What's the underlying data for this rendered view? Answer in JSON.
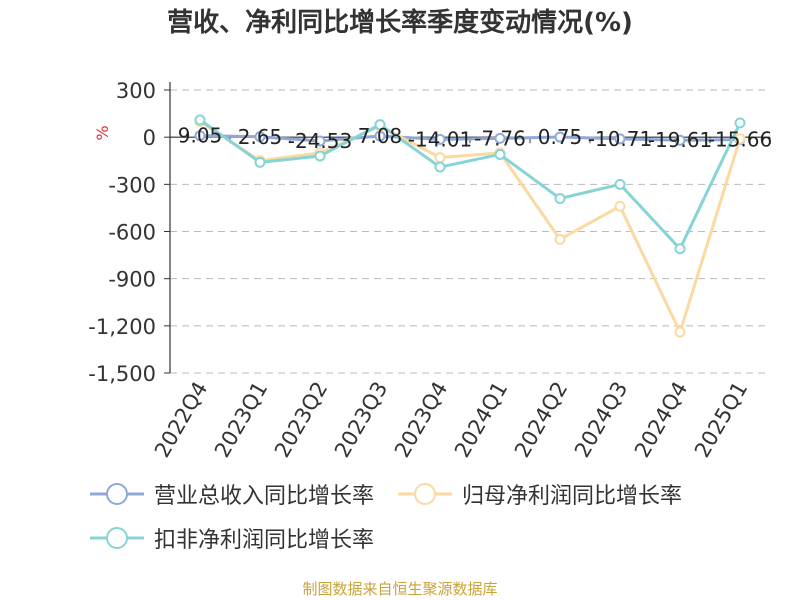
{
  "chart_data": {
    "type": "line",
    "title": "营收、净利同比增长率季度变动情况(%)",
    "ylabel": "%",
    "ylim": [
      -1500,
      300
    ],
    "yticks": [
      300,
      0,
      -300,
      -600,
      -900,
      -1200,
      -1500
    ],
    "ytick_labels": [
      "300",
      "0",
      "-300",
      "-600",
      "-900",
      "-1,200",
      "-1,500"
    ],
    "categories": [
      "2022Q4",
      "2023Q1",
      "2023Q2",
      "2023Q3",
      "2023Q4",
      "2024Q1",
      "2024Q2",
      "2024Q3",
      "2024Q4",
      "2025Q1"
    ],
    "grid": true,
    "legend_position": "bottom",
    "series": [
      {
        "name": "营业总收入同比增长率",
        "color": "#8fa8d8",
        "values": [
          9.05,
          2.65,
          -24.53,
          7.08,
          -14.01,
          -7.76,
          0.75,
          -10.71,
          -19.61,
          -15.66
        ],
        "labels": [
          "9.05",
          "2.65",
          "-24.53",
          "7.08",
          "-14.01",
          "-7.76",
          "0.75",
          "-10.71",
          "-19.61",
          "-15.66"
        ]
      },
      {
        "name": "归母净利润同比增长率",
        "color": "#fbd9a0",
        "values": [
          100,
          -150,
          -100,
          70,
          -130,
          -100,
          -650,
          -440,
          -1240,
          -10
        ]
      },
      {
        "name": "扣非净利润同比增长率",
        "color": "#86d4d6",
        "values": [
          110,
          -160,
          -120,
          80,
          -190,
          -110,
          -390,
          -300,
          -710,
          90
        ]
      }
    ]
  },
  "footer": "制图数据来自恒生聚源数据库"
}
